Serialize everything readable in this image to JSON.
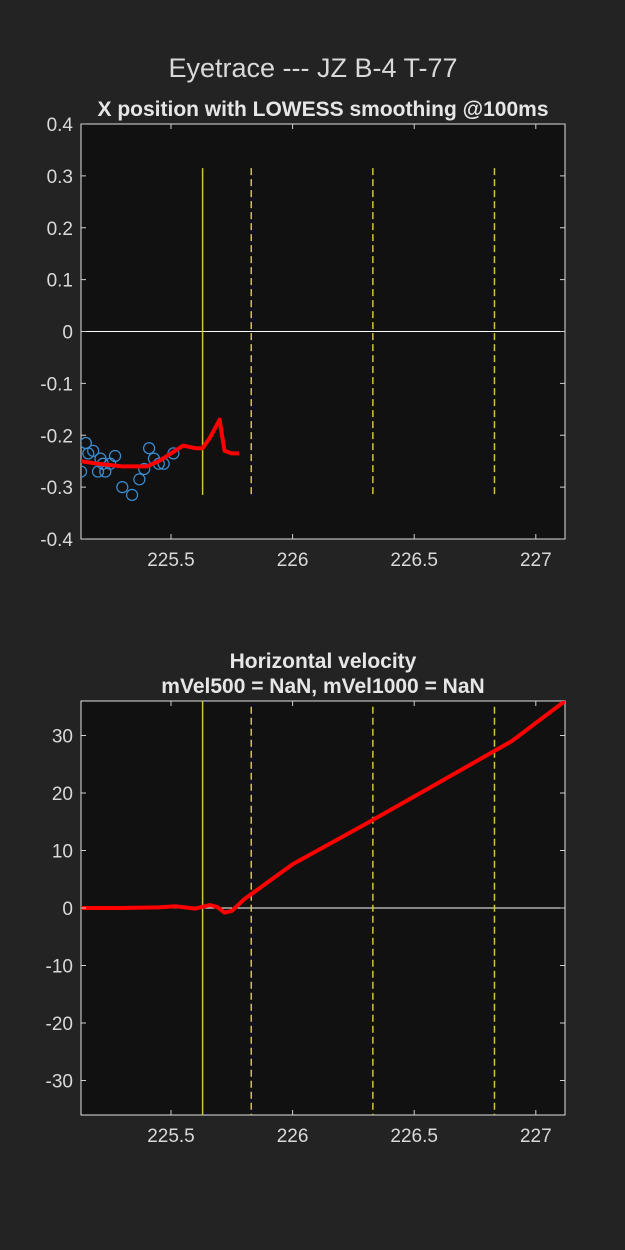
{
  "figure_title": "Eyetrace --- JZ B-4 T-77",
  "colors": {
    "background": "#232323",
    "axes_background": "#111111",
    "trace": "#ff0000",
    "samples": "#3a8fd6",
    "event_line": "#d4c43a",
    "zero_line": "#ffffff"
  },
  "chart_data": [
    {
      "type": "line",
      "title": "X position with LOWESS smoothing @100ms",
      "xlim": [
        225.13,
        227.12
      ],
      "ylim": [
        -0.4,
        0.4
      ],
      "xticks": [
        225.5,
        226,
        226.5,
        227
      ],
      "xtick_labels": [
        "225.5",
        "226",
        "226.5",
        "227"
      ],
      "yticks": [
        0.4,
        0.3,
        0.2,
        0.1,
        0,
        -0.1,
        -0.2,
        -0.3,
        -0.4
      ],
      "ytick_labels": [
        "0.4",
        "0.3",
        "0.2",
        "0.1",
        "0",
        "-0.1",
        "-0.2",
        "-0.3",
        "-0.4"
      ],
      "zero_line": true,
      "event_lines": [
        {
          "x": 225.63,
          "style": "solid",
          "y_range": [
            -0.315,
            0.315
          ]
        },
        {
          "x": 225.83,
          "style": "dashed",
          "y_range": [
            -0.315,
            0.315
          ]
        },
        {
          "x": 226.33,
          "style": "dashed",
          "y_range": [
            -0.315,
            0.315
          ]
        },
        {
          "x": 226.83,
          "style": "dashed",
          "y_range": [
            -0.315,
            0.315
          ]
        }
      ],
      "series": [
        {
          "kind": "scatter",
          "x": [
            225.13,
            225.15,
            225.16,
            225.18,
            225.2,
            225.21,
            225.22,
            225.23,
            225.25,
            225.27,
            225.3,
            225.34,
            225.37,
            225.39,
            225.41,
            225.43,
            225.45,
            225.47,
            225.51
          ],
          "y": [
            -0.27,
            -0.215,
            -0.235,
            -0.23,
            -0.27,
            -0.245,
            -0.255,
            -0.27,
            -0.255,
            -0.24,
            -0.3,
            -0.315,
            -0.285,
            -0.265,
            -0.225,
            -0.245,
            -0.255,
            -0.255,
            -0.235
          ]
        },
        {
          "kind": "line",
          "x": [
            225.13,
            225.2,
            225.3,
            225.4,
            225.45,
            225.5,
            225.55,
            225.6,
            225.63,
            225.66,
            225.7,
            225.72,
            225.75,
            225.78
          ],
          "y": [
            -0.25,
            -0.255,
            -0.26,
            -0.26,
            -0.25,
            -0.235,
            -0.22,
            -0.225,
            -0.225,
            -0.205,
            -0.17,
            -0.23,
            -0.235,
            -0.235
          ]
        }
      ]
    },
    {
      "type": "line",
      "title": "Horizontal velocity",
      "subtitle": "mVel500 = NaN, mVel1000 = NaN",
      "xlim": [
        225.13,
        227.12
      ],
      "ylim": [
        -36,
        36
      ],
      "xticks": [
        225.5,
        226,
        226.5,
        227
      ],
      "xtick_labels": [
        "225.5",
        "226",
        "226.5",
        "227"
      ],
      "yticks": [
        30,
        20,
        10,
        0,
        -10,
        -20,
        -30
      ],
      "ytick_labels": [
        "30",
        "20",
        "10",
        "0",
        "-10",
        "-20",
        "-30"
      ],
      "zero_line": true,
      "event_lines": [
        {
          "x": 225.63,
          "style": "solid",
          "y_range": [
            -36,
            36
          ]
        },
        {
          "x": 225.83,
          "style": "dashed",
          "y_range": [
            -36,
            35
          ]
        },
        {
          "x": 226.33,
          "style": "dashed",
          "y_range": [
            -36,
            35
          ]
        },
        {
          "x": 226.83,
          "style": "dashed",
          "y_range": [
            -36,
            35
          ]
        }
      ],
      "series": [
        {
          "kind": "line",
          "x": [
            225.13,
            225.3,
            225.45,
            225.52,
            225.6,
            225.66,
            225.69,
            225.72,
            225.75,
            225.8,
            226.0,
            226.3,
            226.6,
            226.9,
            227.12
          ],
          "y": [
            0,
            0,
            0.1,
            0.3,
            -0.1,
            0.5,
            0.2,
            -0.8,
            -0.5,
            1.5,
            7.6,
            14.6,
            21.8,
            29.0,
            36.0
          ]
        }
      ]
    }
  ]
}
